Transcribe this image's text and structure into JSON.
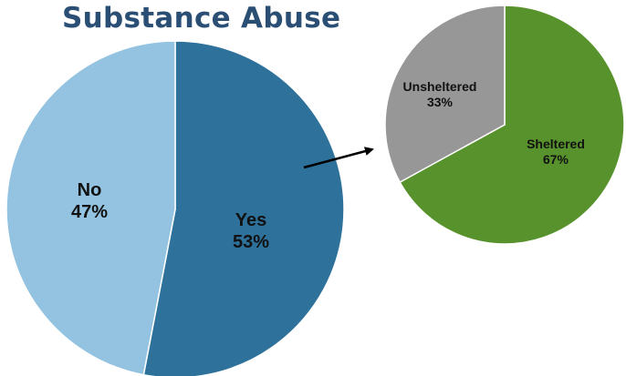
{
  "title": "Substance Abuse",
  "chart_data": [
    {
      "type": "pie",
      "title": "Substance Abuse",
      "slices": [
        {
          "label": "Yes",
          "percent_label": "53%",
          "value": 53,
          "color": "#2e719b"
        },
        {
          "label": "No",
          "percent_label": "47%",
          "value": 47,
          "color": "#93c3e0"
        }
      ]
    },
    {
      "type": "pie",
      "title": "",
      "slices": [
        {
          "label": "Sheltered",
          "percent_label": "67%",
          "value": 67,
          "color": "#58922c"
        },
        {
          "label": "Unsheltered",
          "percent_label": "33%",
          "value": 33,
          "color": "#979797"
        }
      ]
    }
  ],
  "colors": {
    "title": "#2a4e74",
    "arrow": "#000000",
    "slice_border": "#ffffff"
  }
}
